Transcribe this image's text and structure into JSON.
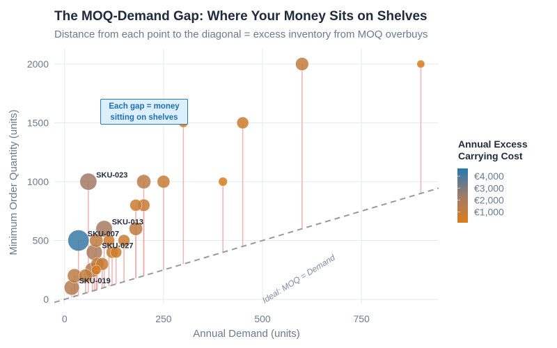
{
  "chart_data": {
    "type": "scatter",
    "title": "The MOQ-Demand Gap: Where Your Money Sits on Shelves",
    "subtitle": "Distance from each point to the diagonal = excess inventory from MOQ overbuys",
    "xlabel": "Annual Demand (units)",
    "ylabel": "Minimum Order Quantity (units)",
    "xlim": [
      -26,
      945
    ],
    "ylim": [
      -35,
      2130
    ],
    "xticks": [
      0,
      250,
      500,
      750
    ],
    "xtick_labels": [
      "0",
      "250",
      "500",
      "750"
    ],
    "yticks": [
      0,
      500,
      1000,
      1500,
      2000
    ],
    "ytick_labels": [
      "0",
      "500",
      "1000",
      "1500",
      "2000"
    ],
    "grid": true,
    "colorbar": {
      "title": "Annual Excess Carrying Cost",
      "range": [
        100,
        4650
      ],
      "ticks": [
        4000,
        3000,
        2000,
        1000
      ],
      "tick_labels": [
        "€4,000",
        "€3,000",
        "€2,000",
        "€1,000"
      ],
      "color_low": "#d97c1c",
      "color_mid": "#a07a6a",
      "color_high": "#2679b0",
      "placement": "right"
    },
    "diagonal": {
      "label": "Ideal: MOQ = Demand",
      "color": "#999999"
    },
    "gap_line_color": "#e8a0a0",
    "annotation": {
      "line1": "Each gap = money",
      "line2": "sitting on shelves",
      "bg": "#dcefff",
      "border": "#2b7bb5"
    },
    "points": [
      {
        "x": 35,
        "y": 500,
        "cost": 4300,
        "label": "SKU-007"
      },
      {
        "x": 60,
        "y": 1000,
        "cost": 2300,
        "label": "SKU-023"
      },
      {
        "x": 100,
        "y": 600,
        "cost": 2100,
        "label": "SKU-013"
      },
      {
        "x": 75,
        "y": 400,
        "cost": 1900,
        "label": "SKU-027"
      },
      {
        "x": 18,
        "y": 100,
        "cost": 1600,
        "label": "SKU-019"
      },
      {
        "x": 25,
        "y": 200,
        "cost": 1300,
        "label": ""
      },
      {
        "x": 53,
        "y": 200,
        "cost": 1100,
        "label": ""
      },
      {
        "x": 70,
        "y": 250,
        "cost": 1500,
        "label": ""
      },
      {
        "x": 80,
        "y": 250,
        "cost": 300,
        "label": ""
      },
      {
        "x": 83,
        "y": 300,
        "cost": 1000,
        "label": ""
      },
      {
        "x": 95,
        "y": 300,
        "cost": 900,
        "label": ""
      },
      {
        "x": 80,
        "y": 500,
        "cost": 1100,
        "label": ""
      },
      {
        "x": 112,
        "y": 500,
        "cost": 600,
        "label": ""
      },
      {
        "x": 150,
        "y": 500,
        "cost": 700,
        "label": ""
      },
      {
        "x": 120,
        "y": 400,
        "cost": 700,
        "label": ""
      },
      {
        "x": 130,
        "y": 400,
        "cost": 600,
        "label": ""
      },
      {
        "x": 180,
        "y": 600,
        "cost": 1100,
        "label": ""
      },
      {
        "x": 180,
        "y": 800,
        "cost": 700,
        "label": ""
      },
      {
        "x": 200,
        "y": 800,
        "cost": 800,
        "label": ""
      },
      {
        "x": 200,
        "y": 1000,
        "cost": 1300,
        "label": ""
      },
      {
        "x": 250,
        "y": 1000,
        "cost": 900,
        "label": ""
      },
      {
        "x": 300,
        "y": 1500,
        "cost": 250,
        "label": ""
      },
      {
        "x": 400,
        "y": 1000,
        "cost": 200,
        "label": ""
      },
      {
        "x": 450,
        "y": 1500,
        "cost": 700,
        "label": ""
      },
      {
        "x": 600,
        "y": 2000,
        "cost": 1000,
        "label": ""
      },
      {
        "x": 900,
        "y": 2000,
        "cost": 100,
        "label": ""
      }
    ]
  }
}
